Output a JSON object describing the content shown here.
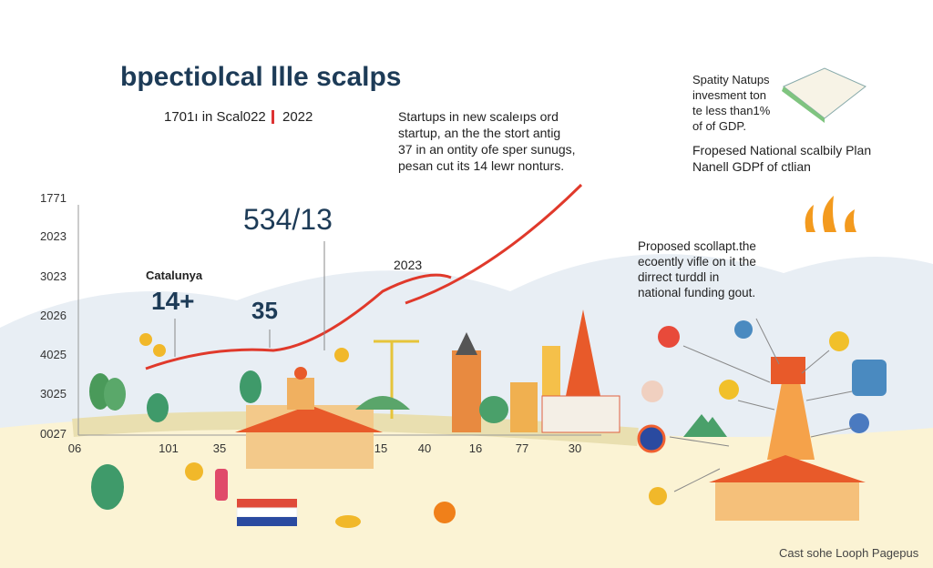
{
  "header": {
    "title": "bpectiolcal llle scalps",
    "subtitle": "1701ı in Scal022",
    "subtitle_year": "2022"
  },
  "axis": {
    "left_labels": [
      "1771",
      "2023",
      "3023",
      "2026",
      "4025",
      "3025",
      "0027"
    ],
    "bottom_labels": [
      "06",
      "101",
      "35",
      "15",
      "40",
      "16",
      "77",
      "30"
    ]
  },
  "annotations": {
    "big_number": "534/13",
    "region": "Catalunya",
    "region_value": "14+",
    "mid_value": "35",
    "line_label": "2023"
  },
  "intro_text": [
    "Startups in new scaleıps ord",
    "startup, an the the stort antig",
    "37 in an ontity ofe sper sunugs,",
    "pesan cut its 14 lewr nonturs."
  ],
  "side_note": {
    "lines": [
      "Spatity Natups",
      "invesment ton",
      "te less than1%",
      "of of GDP."
    ],
    "plan": [
      "Fropesed National scalbily Plan",
      "Nanell GDPf of ctlian"
    ]
  },
  "proposal": [
    "Proposed scollapt.the",
    "ecoently vifle on it the",
    "dirrect turddl in",
    "national funding gout."
  ],
  "footer": "Cast sohe Looph Pagepus"
}
